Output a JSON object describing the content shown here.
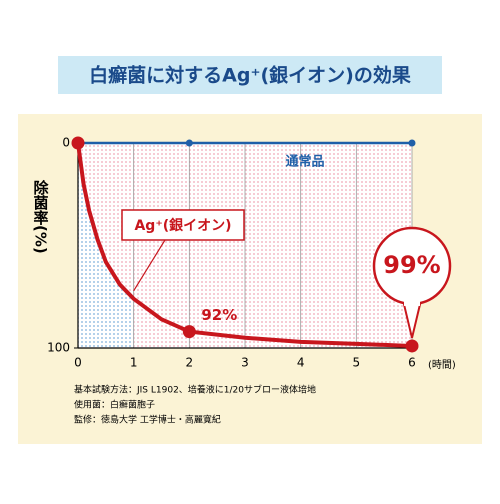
{
  "chart_data": {
    "type": "line",
    "title": "白癬菌に対するAg⁺(銀イオン)の効果",
    "y_label": "除菌率(%)",
    "x_label": "(時間)",
    "xlim": [
      0,
      6
    ],
    "ylim": [
      0,
      100
    ],
    "y_inverted": true,
    "xticks": [
      0,
      1,
      2,
      3,
      4,
      5,
      6
    ],
    "yticks": [
      0,
      100
    ],
    "grid": true,
    "series": [
      {
        "name": "通常品",
        "color": "#1f5fa8",
        "x": [
          0,
          2,
          6
        ],
        "values": [
          0,
          0,
          0
        ],
        "markers": [
          0,
          2,
          6
        ]
      },
      {
        "name": "Ag⁺(銀イオン)",
        "color": "#c8161d",
        "x": [
          0,
          0.1,
          0.2,
          0.35,
          0.5,
          0.75,
          1,
          1.5,
          2,
          3,
          4,
          5,
          6
        ],
        "values": [
          0,
          20,
          33,
          47,
          58,
          69,
          76,
          86,
          92,
          95,
          97,
          98,
          99
        ],
        "value_labels": [
          null,
          null,
          null,
          null,
          null,
          null,
          null,
          null,
          "92%",
          null,
          null,
          null,
          "99%"
        ],
        "markers": [
          0,
          2,
          6
        ]
      }
    ],
    "notes": [
      "基本試験方法：JIS L1902、培養液に1/20サブロー液体培地",
      "使用菌：白癬菌胞子",
      "監修：徳島大学 工学博士・高麗寛紀"
    ]
  }
}
